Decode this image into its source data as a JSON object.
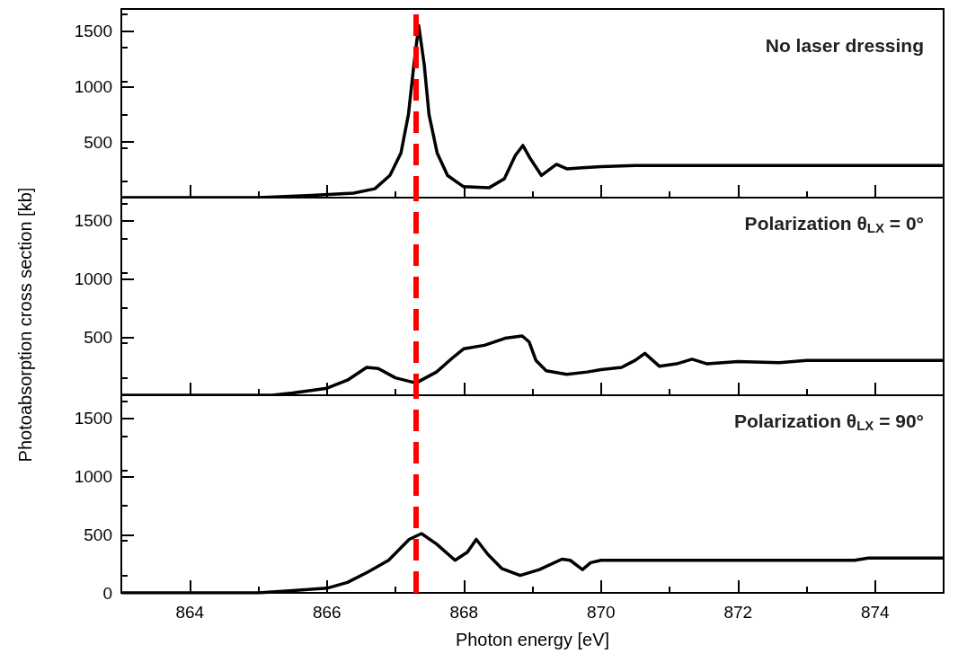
{
  "chart_data": [
    {
      "type": "line",
      "annotations": [
        "No laser dressing"
      ],
      "tick_labels": "y",
      "xlim": [
        863,
        875
      ],
      "ylim": [
        0,
        1700
      ],
      "xticks": [
        864,
        866,
        868,
        870,
        872,
        874
      ],
      "yticks": [
        {
          "value": 0,
          "label": null
        },
        500,
        1000,
        1500
      ],
      "marker": "none",
      "line_style": "solid",
      "ref_lines": [
        {
          "axis": "x",
          "value": 867.3,
          "label": null,
          "color": "#ff0000",
          "line_style": "dashed"
        }
      ],
      "series": [
        {
          "color": "#000000",
          "x": [
            863,
            865,
            865.78,
            866.39,
            866.7,
            866.92,
            867.08,
            867.19,
            867.27,
            867.34,
            867.42,
            867.49,
            867.61,
            867.76,
            867.99,
            868.37,
            868.59,
            868.75,
            868.86,
            868.97,
            869.13,
            869.35,
            869.5,
            869.73,
            870,
            870.5,
            871,
            875
          ],
          "values": [
            0,
            0,
            20,
            40,
            80,
            200,
            400,
            750,
            1200,
            1550,
            1200,
            750,
            400,
            200,
            100,
            90,
            170,
            380,
            470,
            350,
            200,
            300,
            260,
            270,
            280,
            290,
            290,
            290
          ]
        }
      ]
    },
    {
      "type": "line",
      "ylabel": "Photoabsorption cross section [kb]",
      "annotations": [
        "Polarization θ$_{LX}$ = 0°"
      ],
      "tick_labels": "y",
      "xlim": [
        863,
        875
      ],
      "ylim": [
        0,
        1700
      ],
      "xticks": [
        864,
        866,
        868,
        870,
        872,
        874
      ],
      "yticks": [
        {
          "value": 0,
          "label": null
        },
        500,
        1000,
        1500
      ],
      "marker": "none",
      "line_style": "solid",
      "ref_lines": [
        {
          "axis": "x",
          "value": 867.3,
          "label": null,
          "color": "#ff0000",
          "line_style": "dashed"
        }
      ],
      "series": [
        {
          "color": "#000000",
          "x": [
            863,
            865.2,
            865.5,
            866,
            866.3,
            866.58,
            866.75,
            867,
            867.3,
            867.6,
            867.85,
            868,
            868.3,
            868.6,
            868.85,
            868.95,
            869.05,
            869.2,
            869.5,
            869.8,
            870,
            870.3,
            870.5,
            870.64,
            870.85,
            871.1,
            871.33,
            871.55,
            872,
            872.6,
            873,
            875
          ],
          "values": [
            0,
            0,
            20,
            60,
            130,
            240,
            230,
            150,
            105,
            200,
            330,
            400,
            430,
            490,
            510,
            460,
            300,
            210,
            180,
            200,
            220,
            240,
            300,
            360,
            250,
            270,
            310,
            270,
            290,
            280,
            300,
            300
          ]
        }
      ]
    },
    {
      "type": "line",
      "xlabel": "Photon energy [eV]",
      "annotations": [
        "Polarization θ$_{LX}$ = 90°"
      ],
      "xlim": [
        863,
        875
      ],
      "ylim": [
        0,
        1700
      ],
      "xticks": [
        864,
        866,
        868,
        870,
        872,
        874
      ],
      "yticks": [
        0,
        500,
        1000,
        1500
      ],
      "marker": "none",
      "line_style": "solid",
      "ref_lines": [
        {
          "axis": "x",
          "value": 867.3,
          "label": null,
          "color": "#ff0000",
          "line_style": "dashed"
        }
      ],
      "series": [
        {
          "color": "#000000",
          "x": [
            863,
            865,
            865.5,
            866,
            866.3,
            866.6,
            866.9,
            867.2,
            867.38,
            867.6,
            867.87,
            868.05,
            868.18,
            868.35,
            868.55,
            868.82,
            869.1,
            869.43,
            869.55,
            869.73,
            869.85,
            870,
            873.7,
            873.9,
            875
          ],
          "values": [
            0,
            0,
            20,
            40,
            90,
            180,
            280,
            460,
            510,
            420,
            280,
            350,
            460,
            330,
            210,
            150,
            200,
            290,
            280,
            200,
            260,
            280,
            280,
            300,
            300
          ]
        }
      ]
    }
  ]
}
